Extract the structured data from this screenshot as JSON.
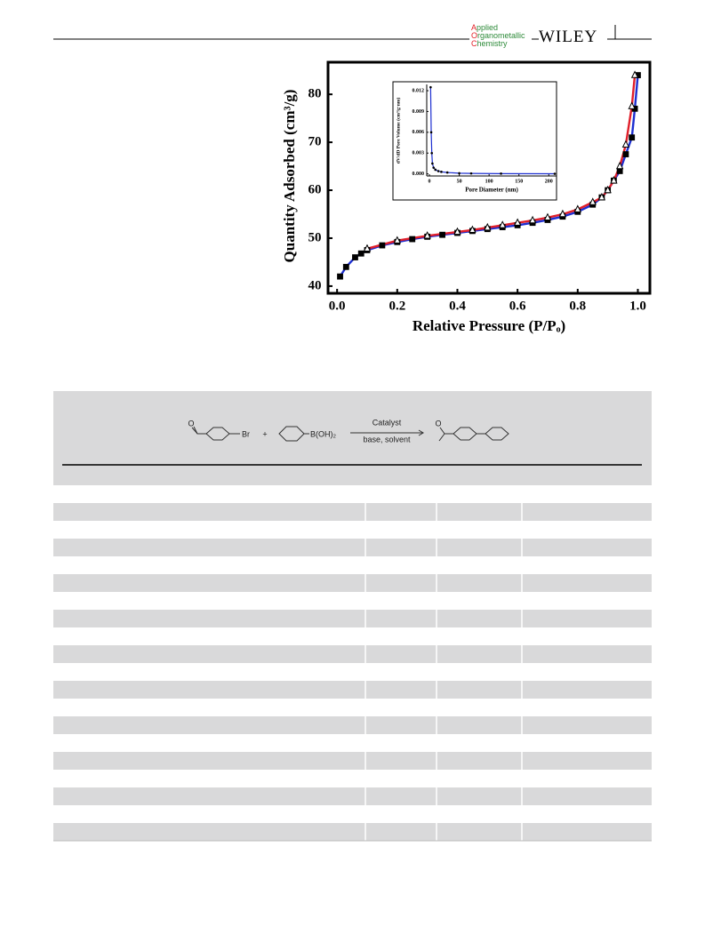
{
  "header": {
    "journal": [
      "Applied",
      "Organometallic",
      "Chemistry"
    ],
    "publisher": "WILEY"
  },
  "chart_data": [
    {
      "type": "scatter-line",
      "xlabel": "Relative Pressure (P/Pₒ)",
      "ylabel": "Quantity Adsorbed (cm³/g)",
      "xlim": [
        -0.03,
        1.04
      ],
      "ylim": [
        38.5,
        86.7
      ],
      "xticks": [
        {
          "value": 0,
          "label": "0.0"
        },
        0.2,
        0.4,
        0.6,
        0.8,
        {
          "value": 1,
          "label": "1.0"
        }
      ],
      "yticks": [
        40,
        50,
        60,
        70,
        80
      ],
      "series": [
        {
          "color": "#1d2fd0",
          "marker": "square",
          "x": [
            0.01,
            0.03,
            0.06,
            0.08,
            0.1,
            0.15,
            0.2,
            0.25,
            0.3,
            0.35,
            0.4,
            0.45,
            0.5,
            0.55,
            0.6,
            0.65,
            0.7,
            0.75,
            0.8,
            0.85,
            0.88,
            0.9,
            0.92,
            0.94,
            0.96,
            0.98,
            0.99,
            1.0
          ],
          "values": [
            42,
            44,
            46,
            46.8,
            47.5,
            48.5,
            49.2,
            49.8,
            50.3,
            50.7,
            51.1,
            51.5,
            51.9,
            52.3,
            52.7,
            53.2,
            53.8,
            54.5,
            55.5,
            57,
            58.5,
            60,
            62,
            64,
            67.5,
            71,
            77,
            84
          ]
        },
        {
          "color": "#e01f2a",
          "marker": "triangle",
          "x": [
            0.99,
            0.98,
            0.96,
            0.94,
            0.92,
            0.9,
            0.88,
            0.85,
            0.8,
            0.75,
            0.7,
            0.65,
            0.6,
            0.55,
            0.5,
            0.45,
            0.4,
            0.3,
            0.2,
            0.1
          ],
          "values": [
            84,
            77.5,
            69.5,
            65,
            62,
            60,
            58.5,
            57.5,
            56,
            55,
            54.3,
            53.7,
            53.2,
            52.7,
            52.2,
            51.7,
            51.3,
            50.5,
            49.5,
            47.8
          ]
        }
      ]
    },
    {
      "type": "scatter-line",
      "xlabel": "Pore Diameter (nm)",
      "ylabel": "dV/dD Pore Volume (cm³/g·nm)",
      "xlim": [
        -4.5,
        213
      ],
      "ylim": [
        -0.0003,
        0.0129
      ],
      "xticks": [
        0,
        50,
        100,
        150,
        200
      ],
      "yticks": [
        {
          "value": 0,
          "label": "0.000"
        },
        0.003,
        0.006,
        0.009,
        0.012
      ],
      "series": [
        {
          "color": "#1d2fd0",
          "marker": "dot",
          "x": [
            2,
            3,
            4,
            5,
            7,
            10,
            15,
            20,
            30,
            50,
            70,
            120,
            210
          ],
          "values": [
            0.0125,
            0.006,
            0.003,
            0.0015,
            0.0009,
            0.0006,
            0.0004,
            0.0003,
            0.0002,
            0.0001,
            7e-05,
            4e-05,
            2e-05
          ]
        }
      ]
    }
  ],
  "scheme": {
    "reactant_1": {
      "oxygen": "O",
      "halogen": "Br"
    },
    "plus": "+",
    "reactant_2": "B(OH)₂",
    "conditions": [
      "Catalyst",
      "base, solvent"
    ],
    "product": {
      "oxygen": "O"
    }
  }
}
